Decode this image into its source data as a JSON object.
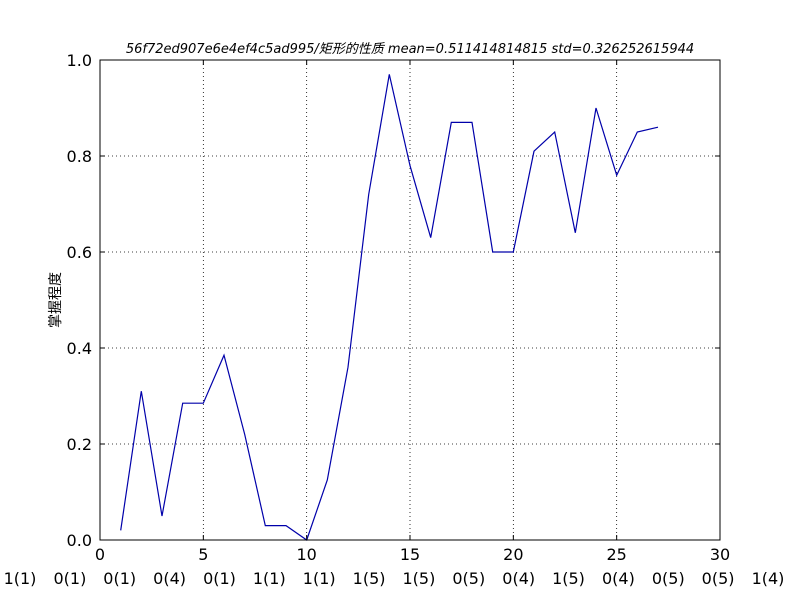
{
  "chart_data": {
    "type": "line",
    "title": "56f72ed907e6e4ef4c5ad995/矩形的性质  mean=0.511414814815 std=0.326252615944",
    "xlabel": "",
    "ylabel": "掌握程度",
    "xlim": [
      0,
      30
    ],
    "ylim": [
      0.0,
      1.0
    ],
    "grid": true,
    "x_ticks": [
      "0",
      "5",
      "10",
      "15",
      "20",
      "25",
      "30"
    ],
    "y_ticks": [
      "0.0",
      "0.2",
      "0.4",
      "0.6",
      "0.8",
      "1.0"
    ],
    "series": [
      {
        "color": "#0000aa",
        "x": [
          1,
          2,
          3,
          4,
          5,
          6,
          7,
          8,
          9,
          10,
          11,
          12,
          13,
          14,
          15,
          16,
          17,
          18,
          19,
          20,
          21,
          22,
          23,
          24,
          25,
          26,
          27
        ],
        "y": [
          0.02,
          0.31,
          0.05,
          0.285,
          0.285,
          0.385,
          0.22,
          0.03,
          0.03,
          0.0,
          0.125,
          0.36,
          0.72,
          0.97,
          0.78,
          0.63,
          0.87,
          0.87,
          0.6,
          0.6,
          0.81,
          0.85,
          0.64,
          0.9,
          0.76,
          0.85,
          0.86
        ]
      }
    ],
    "bottom_labels": [
      "1(1)",
      "0(1)",
      "0(1)",
      "0(4)",
      "0(1)",
      "1(1)",
      "1(1)",
      "1(5)",
      "1(5)",
      "0(5)",
      "0(4)",
      "1(5)",
      "0(4)",
      "0(5)",
      "0(5)",
      "1(4)"
    ]
  }
}
